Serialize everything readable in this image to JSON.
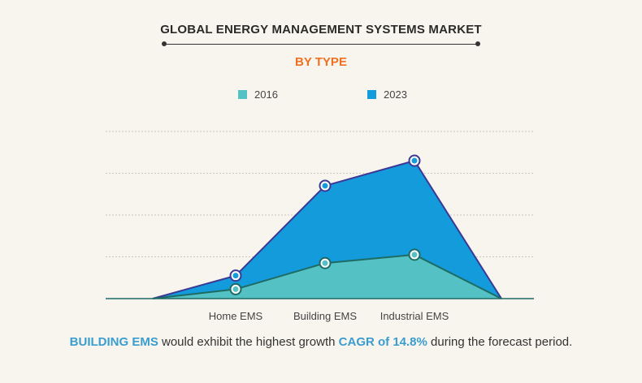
{
  "header": {
    "title": "GLOBAL ENERGY MANAGEMENT SYSTEMS MARKET",
    "subtitle": "BY TYPE"
  },
  "legend": [
    {
      "label": "2016",
      "color": "#54c1c4"
    },
    {
      "label": "2023",
      "color": "#139bdb"
    }
  ],
  "footer": {
    "highlight1": "BUILDING EMS",
    "text1": " would exhibit the highest growth ",
    "highlight2": "CAGR of 14.8%",
    "text2": " during the forecast period."
  },
  "chart_data": {
    "type": "area",
    "categories": [
      "Home EMS",
      "Building EMS",
      "Industrial EMS"
    ],
    "series": [
      {
        "name": "2016",
        "values": [
          0.45,
          1.7,
          2.1
        ],
        "color": "#54c1c4",
        "stroke": "#1e6b63"
      },
      {
        "name": "2023",
        "values": [
          1.1,
          5.4,
          6.6
        ],
        "color": "#139bdb",
        "stroke": "#3b3896"
      }
    ],
    "ylim": [
      0,
      8
    ],
    "grid": true,
    "legend_position": "top-center"
  }
}
